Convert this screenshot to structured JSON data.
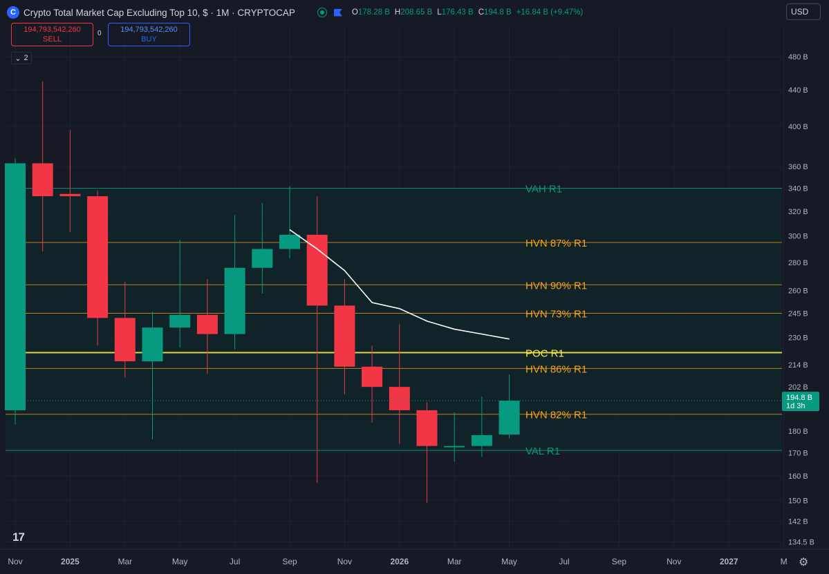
{
  "header": {
    "title": "Crypto Total Market Cap Excluding Top 10, $ · 1M · CRYPTOCAP",
    "ohlc": [
      {
        "k": "O",
        "v": "178.28 B"
      },
      {
        "k": "H",
        "v": "208.65 B"
      },
      {
        "k": "L",
        "v": "176.43 B"
      },
      {
        "k": "C",
        "v": "194.8 B"
      },
      {
        "k": "",
        "v": "+16.84 B (+9.47%)"
      }
    ],
    "currency": "USD"
  },
  "trade": {
    "sell_value": "194,793,542,260",
    "sell_label": "SELL",
    "spread": "0",
    "buy_value": "194,793,542,260",
    "buy_label": "BUY"
  },
  "indicators_count": "2",
  "colors": {
    "up": "#089981",
    "down": "#f23645",
    "hvn": "#f7a11b",
    "poc": "#f5e94a",
    "value_area": "#089981",
    "vwap": "#ffffff",
    "background": "#161a25"
  },
  "chart_data": {
    "type": "candlestick",
    "title": "Crypto Total Market Cap Excluding Top 10",
    "interval": "1M",
    "y_scale": "log",
    "ylim": [
      132,
      520
    ],
    "y_ticks": [
      {
        "label": "480 B",
        "v": 480
      },
      {
        "label": "440 B",
        "v": 440
      },
      {
        "label": "400 B",
        "v": 400
      },
      {
        "label": "360 B",
        "v": 360
      },
      {
        "label": "340 B",
        "v": 340
      },
      {
        "label": "320 B",
        "v": 320
      },
      {
        "label": "300 B",
        "v": 300
      },
      {
        "label": "280 B",
        "v": 280
      },
      {
        "label": "260 B",
        "v": 260
      },
      {
        "label": "245 B",
        "v": 245
      },
      {
        "label": "230 B",
        "v": 230
      },
      {
        "label": "214 B",
        "v": 214
      },
      {
        "label": "202 B",
        "v": 202
      },
      {
        "label": "180 B",
        "v": 180
      },
      {
        "label": "170 B",
        "v": 170
      },
      {
        "label": "160 B",
        "v": 160
      },
      {
        "label": "150 B",
        "v": 150
      },
      {
        "label": "142 B",
        "v": 142
      },
      {
        "label": "134.5 B",
        "v": 134.5
      }
    ],
    "x_ticks": [
      {
        "label": "Nov",
        "i": 0,
        "bold": false
      },
      {
        "label": "2025",
        "i": 2,
        "bold": true
      },
      {
        "label": "Mar",
        "i": 4,
        "bold": false
      },
      {
        "label": "May",
        "i": 6,
        "bold": false
      },
      {
        "label": "Jul",
        "i": 8,
        "bold": false
      },
      {
        "label": "Sep",
        "i": 10,
        "bold": false
      },
      {
        "label": "Nov",
        "i": 12,
        "bold": false
      },
      {
        "label": "2026",
        "i": 14,
        "bold": true
      },
      {
        "label": "Mar",
        "i": 16,
        "bold": false
      },
      {
        "label": "May",
        "i": 18,
        "bold": false
      },
      {
        "label": "Jul",
        "i": 20,
        "bold": false
      },
      {
        "label": "Sep",
        "i": 22,
        "bold": false
      },
      {
        "label": "Nov",
        "i": 24,
        "bold": false
      },
      {
        "label": "2027",
        "i": 26,
        "bold": true
      },
      {
        "label": "M",
        "i": 28,
        "bold": false
      }
    ],
    "candles": [
      {
        "t": "2024-11",
        "o": 190,
        "h": 368,
        "l": 183,
        "c": 363
      },
      {
        "t": "2024-12",
        "o": 363,
        "h": 450,
        "l": 288,
        "c": 333
      },
      {
        "t": "2025-01",
        "o": 335,
        "h": 396,
        "l": 303,
        "c": 333
      },
      {
        "t": "2025-02",
        "o": 333,
        "h": 338,
        "l": 225,
        "c": 242
      },
      {
        "t": "2025-03",
        "o": 242,
        "h": 266,
        "l": 207,
        "c": 216
      },
      {
        "t": "2025-04",
        "o": 216,
        "h": 246,
        "l": 176,
        "c": 236
      },
      {
        "t": "2025-05",
        "o": 236,
        "h": 297,
        "l": 224,
        "c": 244
      },
      {
        "t": "2025-06",
        "o": 244,
        "h": 268,
        "l": 209,
        "c": 232
      },
      {
        "t": "2025-07",
        "o": 232,
        "h": 317,
        "l": 223,
        "c": 276
      },
      {
        "t": "2025-08",
        "o": 276,
        "h": 327,
        "l": 258,
        "c": 290
      },
      {
        "t": "2025-09",
        "o": 290,
        "h": 342,
        "l": 283,
        "c": 301
      },
      {
        "t": "2025-10",
        "o": 301,
        "h": 333,
        "l": 157,
        "c": 250
      },
      {
        "t": "2025-11",
        "o": 250,
        "h": 268,
        "l": 198,
        "c": 213
      },
      {
        "t": "2025-12",
        "o": 213,
        "h": 225,
        "l": 184,
        "c": 202
      },
      {
        "t": "2026-01",
        "o": 202,
        "h": 238,
        "l": 174,
        "c": 190
      },
      {
        "t": "2026-02",
        "o": 190,
        "h": 194,
        "l": 149,
        "c": 173
      },
      {
        "t": "2026-03",
        "o": 173,
        "h": 189,
        "l": 166,
        "c": 173
      },
      {
        "t": "2026-04",
        "o": 173,
        "h": 197,
        "l": 168,
        "c": 178
      },
      {
        "t": "2026-05",
        "o": 178.28,
        "h": 208.65,
        "l": 176.43,
        "c": 194.8
      }
    ],
    "vwap_line": [
      {
        "i": 10,
        "v": 305
      },
      {
        "i": 11,
        "v": 290
      },
      {
        "i": 12,
        "v": 274
      },
      {
        "i": 13,
        "v": 252
      },
      {
        "i": 14,
        "v": 248
      },
      {
        "i": 15,
        "v": 240
      },
      {
        "i": 16,
        "v": 235
      },
      {
        "i": 17,
        "v": 232
      },
      {
        "i": 18,
        "v": 229
      }
    ],
    "levels": [
      {
        "label": "VAH R1",
        "v": 340,
        "kind": "va"
      },
      {
        "label": "HVN 87% R1",
        "v": 295,
        "kind": "hvn"
      },
      {
        "label": "HVN 90% R1",
        "v": 264,
        "kind": "hvn"
      },
      {
        "label": "HVN 73% R1",
        "v": 245,
        "kind": "hvn"
      },
      {
        "label": "POC R1",
        "v": 221,
        "kind": "poc"
      },
      {
        "label": "HVN 86% R1",
        "v": 212,
        "kind": "hvn"
      },
      {
        "label": "HVN 82% R1",
        "v": 188,
        "kind": "hvn"
      },
      {
        "label": "VAL R1",
        "v": 171,
        "kind": "va"
      }
    ],
    "price_tag": {
      "value": "194.8 B",
      "countdown": "1d 3h",
      "v": 194.8
    }
  }
}
